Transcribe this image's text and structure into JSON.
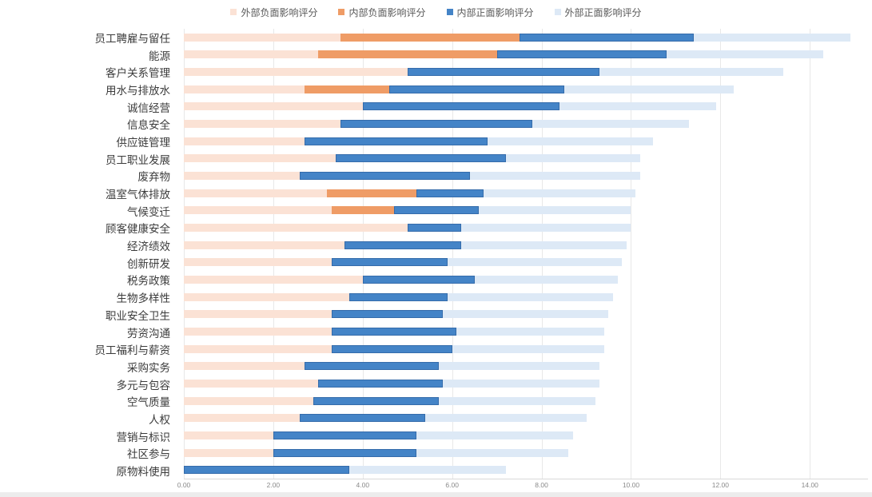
{
  "chart_data": {
    "type": "bar",
    "orientation": "horizontal",
    "stacked": true,
    "grid": true,
    "legend_position": "top",
    "xlim": [
      0,
      15.3
    ],
    "grid_values": [
      0,
      2,
      4,
      6,
      8,
      10,
      12,
      14
    ],
    "xlabel_ticks": [
      "0.00",
      "2.00",
      "4.00",
      "6.00",
      "8.00",
      "10.00",
      "12.00",
      "14.00"
    ],
    "categories": [
      "员工聘雇与留任",
      "能源",
      "客户关系管理",
      "用水与排放水",
      "诚信经营",
      "信息安全",
      "供应链管理",
      "员工职业发展",
      "废弃物",
      "温室气体排放",
      "气候变迁",
      "顾客健康安全",
      "经济绩效",
      "创新研发",
      "税务政策",
      "生物多样性",
      "职业安全卫生",
      "劳资沟通",
      "员工福利与薪资",
      "采购实务",
      "多元与包容",
      "空气质量",
      "人权",
      "营销与标识",
      "社区参与",
      "原物料使用"
    ],
    "series": [
      {
        "key": "external-negative",
        "name": "外部负面影响评分",
        "color": "#fbe2d5",
        "values": [
          3.5,
          3.0,
          5.0,
          2.7,
          4.0,
          3.5,
          2.7,
          3.4,
          2.6,
          3.2,
          3.3,
          5.0,
          3.6,
          3.3,
          4.0,
          3.7,
          3.3,
          3.3,
          3.3,
          2.7,
          3.0,
          2.9,
          2.6,
          2.0,
          2.0,
          0
        ]
      },
      {
        "key": "internal-negative",
        "name": "内部负面影响评分",
        "color": "#ef9c66",
        "values": [
          4.0,
          4.0,
          0,
          1.9,
          0,
          0,
          0,
          0,
          0,
          2.0,
          1.4,
          0,
          0,
          0,
          0,
          0,
          0,
          0,
          0,
          0,
          0,
          0,
          0,
          0,
          0,
          0
        ]
      },
      {
        "key": "internal-positive",
        "name": "内部正面影响评分",
        "color": "#4484c7",
        "border": true,
        "values": [
          3.9,
          3.8,
          4.3,
          3.9,
          4.4,
          4.3,
          4.1,
          3.8,
          3.8,
          1.5,
          1.9,
          1.2,
          2.6,
          2.6,
          2.5,
          2.2,
          2.5,
          2.8,
          2.7,
          3.0,
          2.8,
          2.8,
          2.8,
          3.2,
          3.2,
          3.7
        ]
      },
      {
        "key": "external-positive",
        "name": "外部正面影响评分",
        "color": "#dde9f6",
        "values": [
          3.5,
          3.5,
          4.1,
          3.8,
          3.5,
          3.5,
          3.7,
          3.0,
          3.8,
          3.4,
          3.4,
          3.8,
          3.7,
          3.9,
          3.2,
          3.7,
          3.7,
          3.3,
          3.4,
          3.6,
          3.5,
          3.5,
          3.6,
          3.5,
          3.4,
          3.5
        ]
      }
    ],
    "colors": {
      "gridline": "#e8e8e8",
      "axis_line": "#d9d9d9",
      "category_text": "#3b3b3b",
      "tick_text": "#8a8a8a",
      "legend_text": "#595959"
    }
  }
}
